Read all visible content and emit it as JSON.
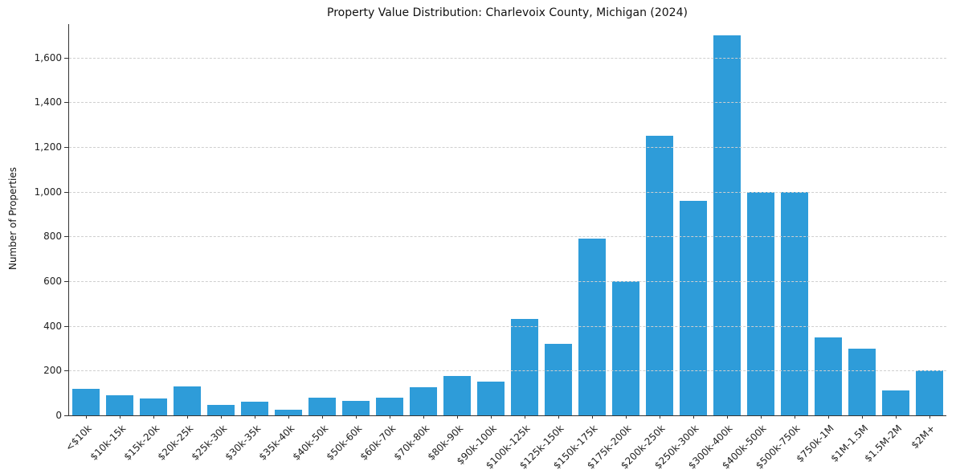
{
  "chart_data": {
    "type": "bar",
    "title": "Property Value Distribution: Charlevoix County, Michigan (2024)",
    "xlabel": "",
    "ylabel": "Number of Properties",
    "categories": [
      "<$10k",
      "$10k-15k",
      "$15k-20k",
      "$20k-25k",
      "$25k-30k",
      "$30k-35k",
      "$35k-40k",
      "$40k-50k",
      "$50k-60k",
      "$60k-70k",
      "$70k-80k",
      "$80k-90k",
      "$90k-100k",
      "$100k-125k",
      "$125k-150k",
      "$150k-175k",
      "$175k-200k",
      "$200k-250k",
      "$250k-300k",
      "$300k-400k",
      "$400k-500k",
      "$500k-750k",
      "$750k-1M",
      "$1M-1.5M",
      "$1.5M-2M",
      "$2M+"
    ],
    "values": [
      120,
      90,
      75,
      130,
      45,
      60,
      25,
      80,
      65,
      80,
      125,
      175,
      150,
      430,
      320,
      790,
      600,
      1250,
      960,
      1700,
      1000,
      1000,
      350,
      300,
      110,
      200
    ],
    "ylim": [
      0,
      1750
    ],
    "yticks": [
      0,
      200,
      400,
      600,
      800,
      1000,
      1200,
      1400,
      1600
    ],
    "ytick_labels": [
      "0",
      "200",
      "400",
      "600",
      "800",
      "1,000",
      "1,200",
      "1,400",
      "1,600"
    ],
    "grid": "horizontal-dashed",
    "legend": "none",
    "bar_color": "#2e9cd9"
  }
}
